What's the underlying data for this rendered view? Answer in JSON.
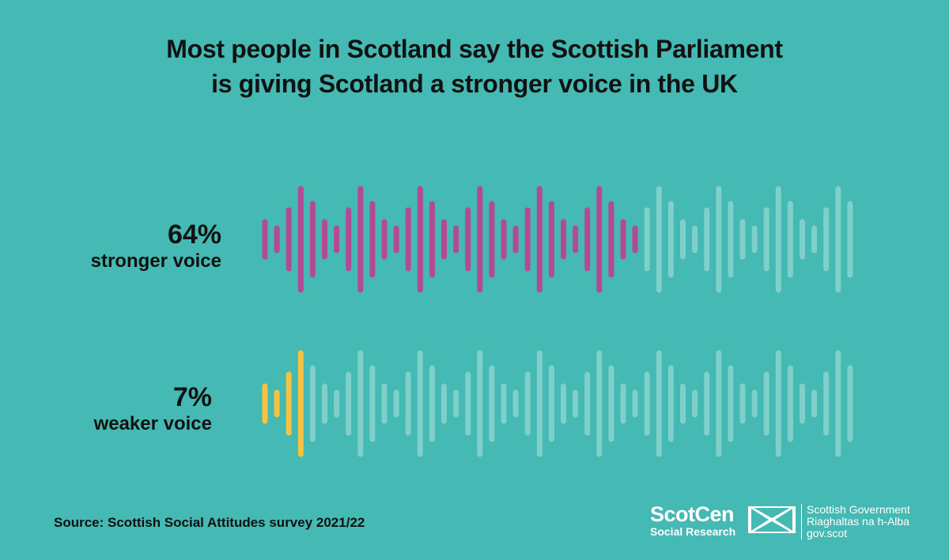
{
  "title_lines": [
    "Most people in Scotland say the Scottish Parliament",
    "is giving Scotland a stronger voice in the UK"
  ],
  "colors": {
    "background": "#45b9b3",
    "stronger": "#b44a96",
    "weaker": "#f5c242",
    "inactive": "#7fd0ca"
  },
  "chart_data": {
    "type": "bar",
    "categories": [
      "stronger voice",
      "weaker voice"
    ],
    "values": [
      64,
      7
    ],
    "value_labels": [
      "64%",
      "7%"
    ],
    "unit": "%",
    "xlim": [
      0,
      100
    ]
  },
  "source": "Source: Scottish Social Attitudes survey 2021/22",
  "logos": {
    "scotcen_name": "ScotCen",
    "scotcen_sub": "Social Research",
    "gov_lines": [
      "Scottish Government",
      "Riaghaltas na h-Alba",
      "gov.scot"
    ]
  }
}
